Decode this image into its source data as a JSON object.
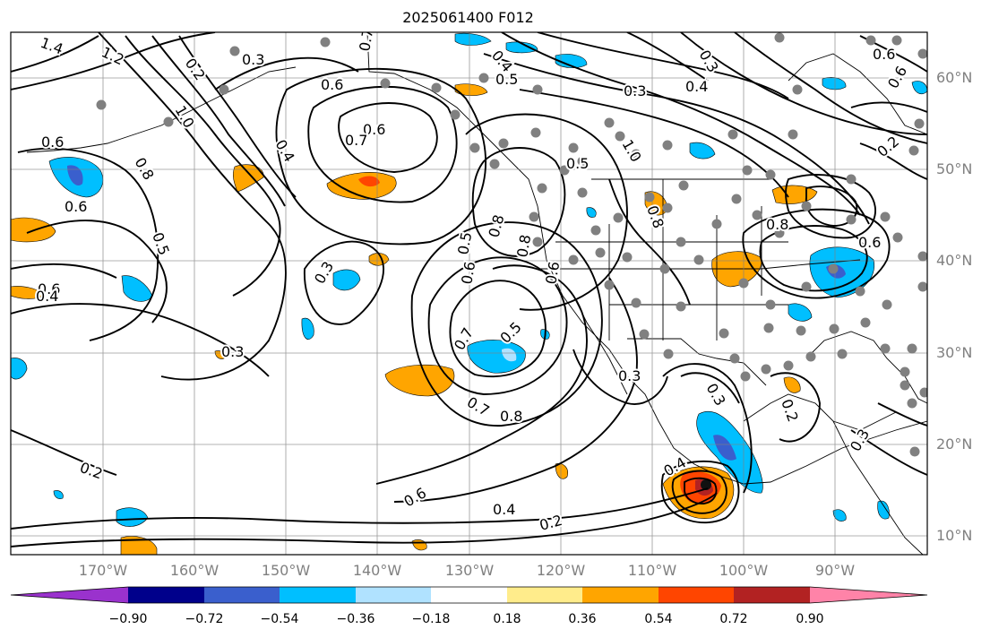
{
  "title": "2025061400 F012",
  "lat_labels": [
    "60°N",
    "50°N",
    "40°N",
    "30°N",
    "20°N",
    "10°N"
  ],
  "lon_labels": [
    "170°W",
    "160°W",
    "150°W",
    "140°W",
    "130°W",
    "120°W",
    "110°W",
    "100°W",
    "90°W"
  ],
  "colorbar": {
    "ticks": [
      "−0.90",
      "−0.72",
      "−0.54",
      "−0.36",
      "−0.18",
      "0.18",
      "0.36",
      "0.54",
      "0.72",
      "0.90"
    ],
    "colors": [
      "#9a32cd",
      "#00008b",
      "#3a5fcd",
      "#00bfff",
      "#b0e2ff",
      "#ffffff",
      "#ffec8b",
      "#ffa500",
      "#ff4500",
      "#b22222",
      "#ff83a8"
    ]
  },
  "contour_labels": [
    "1.4",
    "1.2",
    "0.2",
    "0.3",
    "0.7",
    "0.4",
    "0.6",
    "0.5",
    "0.3",
    "0.4",
    "0.6",
    "0.3",
    "0.6",
    "0.7",
    "0.6",
    "1.0",
    "0.4",
    "0.6",
    "0.8",
    "0.8",
    "0.6",
    "0.5",
    "0.4",
    "0.3",
    "0.3",
    "0.6",
    "0.5",
    "0.8",
    "1.0",
    "0.6",
    "0.8",
    "0.6",
    "0.5",
    "0.6",
    "0.7",
    "0.5",
    "0.3",
    "0.7",
    "0.8",
    "0.6",
    "0.4",
    "0.2",
    "0.2",
    "0.3",
    "0.8",
    "0.4",
    "0.2",
    "0.3",
    "0.2"
  ]
}
